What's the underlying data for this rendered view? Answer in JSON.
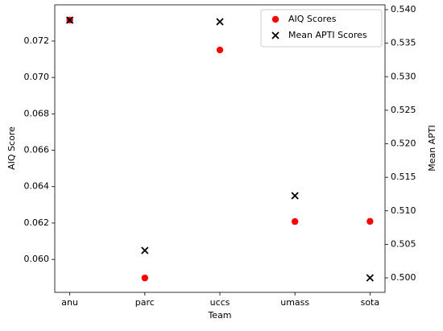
{
  "chart_data": {
    "type": "scatter",
    "xlabel": "Team",
    "ylabel": "AIQ Score",
    "y2label": "Mean APTI",
    "categories": [
      "anu",
      "parc",
      "uccs",
      "umass",
      "sota"
    ],
    "series": [
      {
        "name": "AIQ Scores",
        "color": "#ff0000",
        "marker": "circle",
        "axis": "y",
        "values": [
          0.07315,
          0.05898,
          0.07151,
          0.06208,
          0.06209
        ]
      },
      {
        "name": "Mean APTI Scores",
        "color": "#000000",
        "marker": "x",
        "axis": "y2",
        "values": [
          0.53844,
          0.50408,
          0.5382,
          0.51225,
          0.5
        ]
      }
    ],
    "ylim": [
      0.05819,
      0.07399
    ],
    "yticks": [
      {
        "value": 0.06,
        "label": "0.060"
      },
      {
        "value": 0.062,
        "label": "0.062"
      },
      {
        "value": 0.064,
        "label": "0.064"
      },
      {
        "value": 0.066,
        "label": "0.066"
      },
      {
        "value": 0.068,
        "label": "0.068"
      },
      {
        "value": 0.07,
        "label": "0.070"
      },
      {
        "value": 0.072,
        "label": "0.072"
      }
    ],
    "y2lim": [
      0.49784,
      0.54072
    ],
    "y2ticks": [
      {
        "value": 0.5,
        "label": "0.500"
      },
      0.505,
      {
        "value": 0.51,
        "label": "0.510"
      },
      0.515,
      {
        "value": 0.52,
        "label": "0.520"
      },
      0.525,
      {
        "value": 0.53,
        "label": "0.530"
      },
      0.535,
      {
        "value": 0.54,
        "label": "0.540"
      }
    ],
    "legend": "upper right",
    "grid": false
  }
}
